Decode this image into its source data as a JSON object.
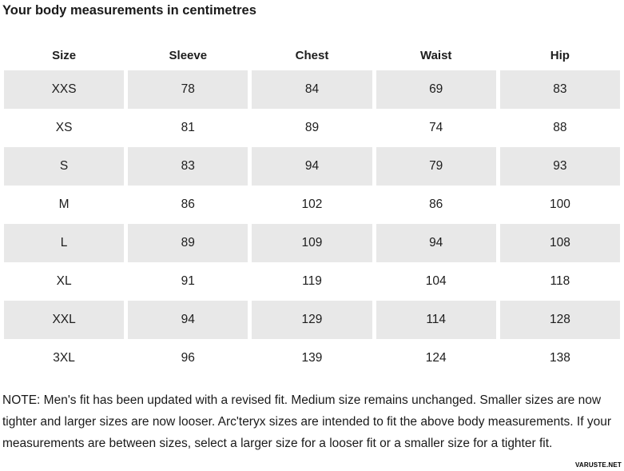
{
  "title": "Your body measurements in centimetres",
  "table": {
    "headers": [
      "Size",
      "Sleeve",
      "Chest",
      "Waist",
      "Hip"
    ],
    "rows": [
      [
        "XXS",
        "78",
        "84",
        "69",
        "83"
      ],
      [
        "XS",
        "81",
        "89",
        "74",
        "88"
      ],
      [
        "S",
        "83",
        "94",
        "79",
        "93"
      ],
      [
        "M",
        "86",
        "102",
        "86",
        "100"
      ],
      [
        "L",
        "89",
        "109",
        "94",
        "108"
      ],
      [
        "XL",
        "91",
        "119",
        "104",
        "118"
      ],
      [
        "XXL",
        "94",
        "129",
        "114",
        "128"
      ],
      [
        "3XL",
        "96",
        "139",
        "124",
        "138"
      ]
    ]
  },
  "note": "NOTE: Men's fit has been updated with a revised fit. Medium size remains unchanged. Smaller sizes are now tighter and larger sizes are now looser. Arc'teryx sizes are intended to fit the above body measurements. If your measurements are between sizes, select a larger size for a looser fit or a smaller size for a tighter fit.",
  "watermark": "VARUSTE.NET",
  "colors": {
    "stripe": "#e8e8e8",
    "text": "#1a1a1a",
    "background": "#ffffff"
  }
}
